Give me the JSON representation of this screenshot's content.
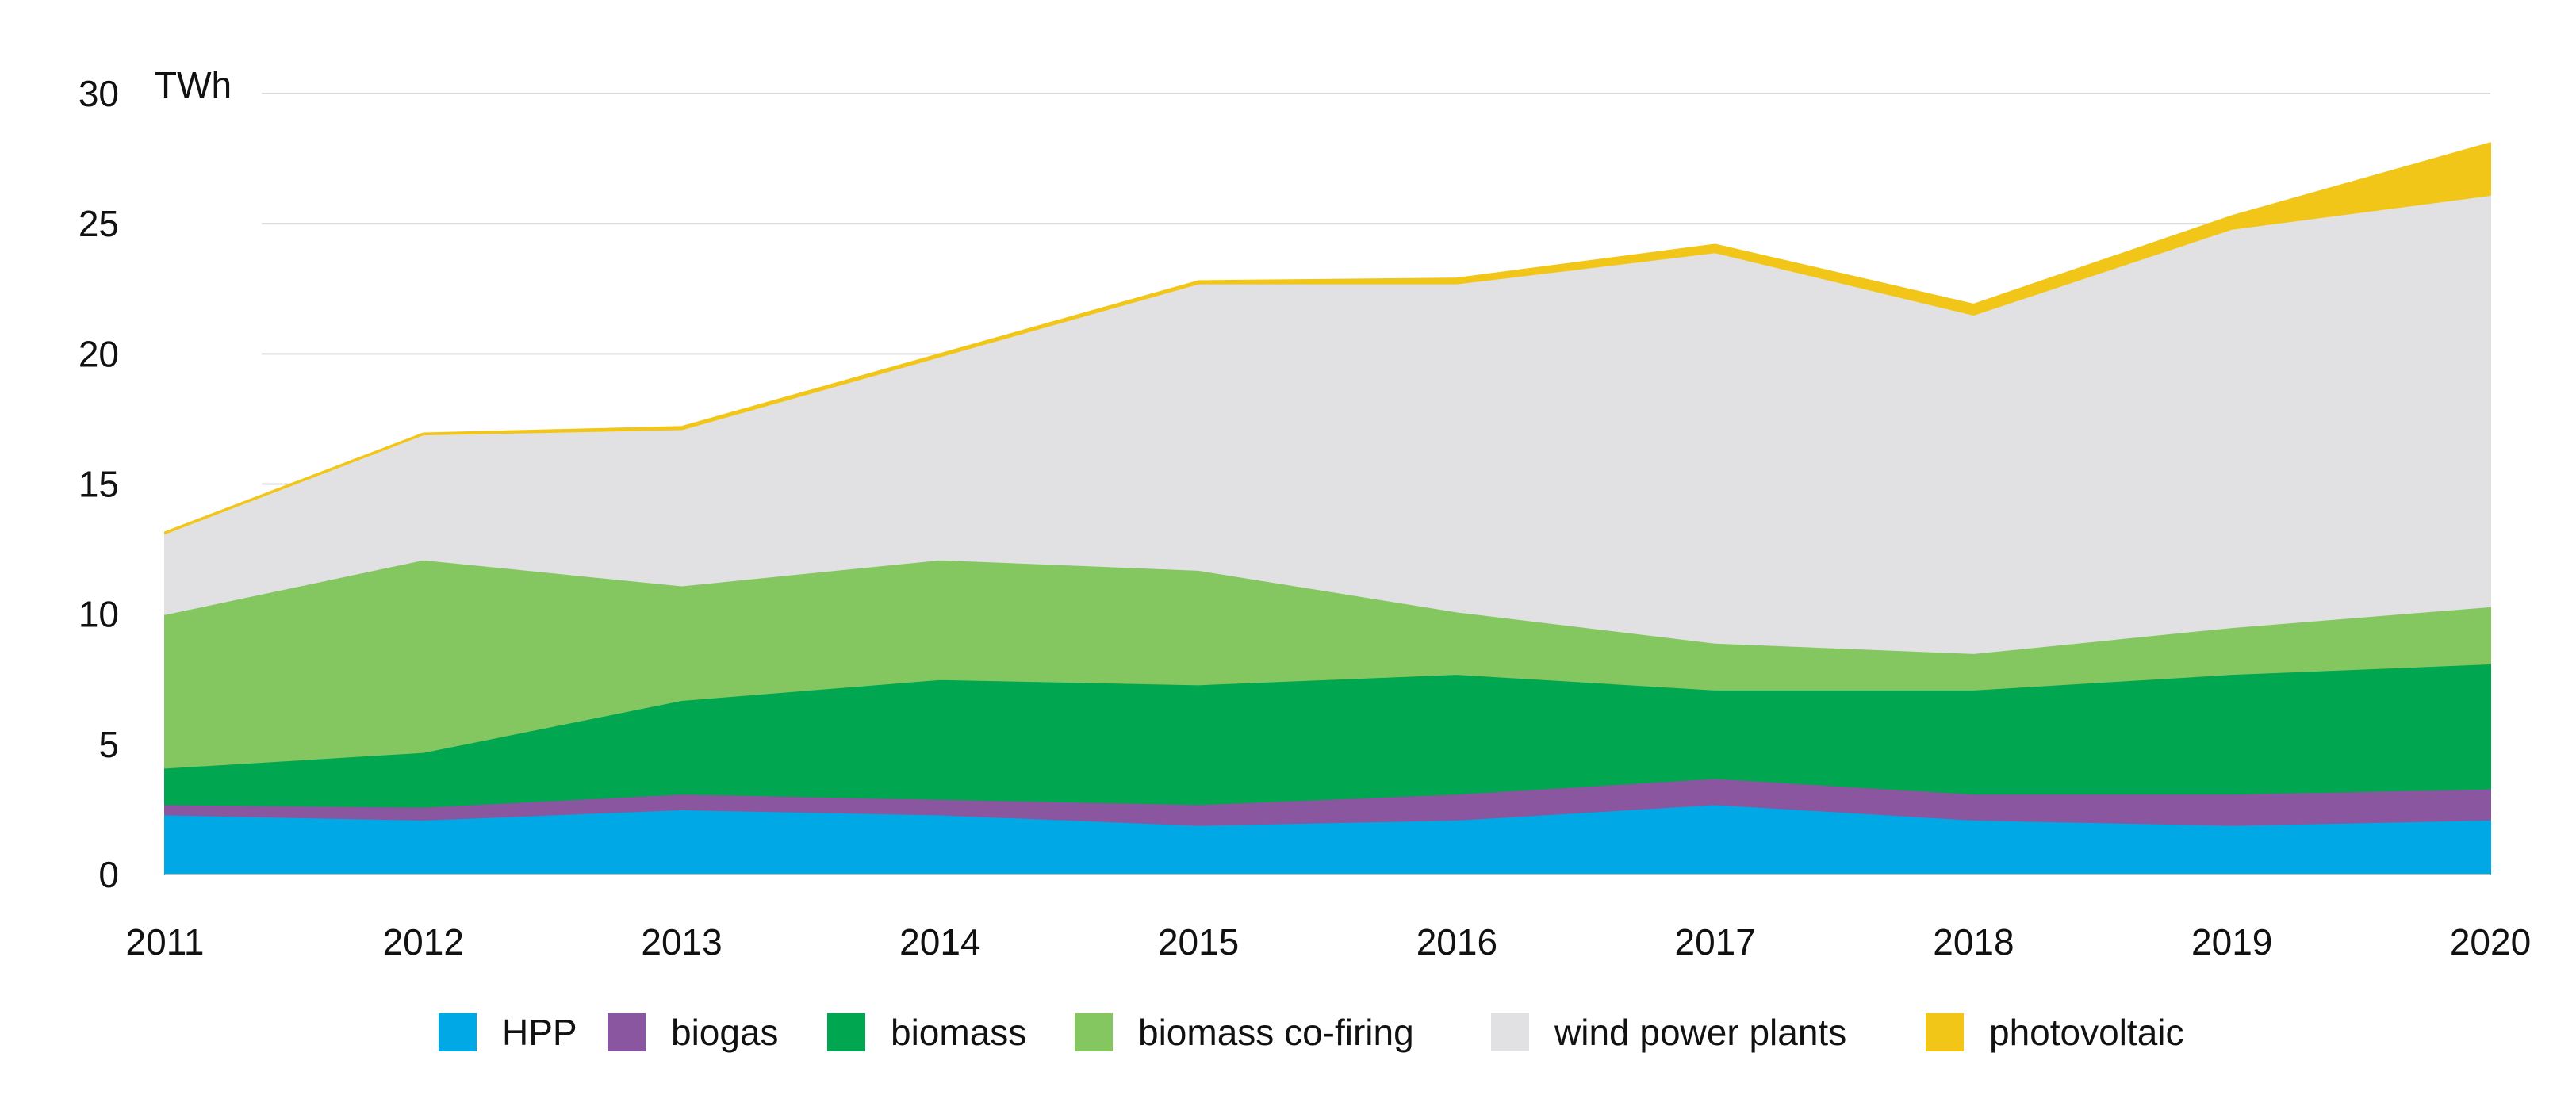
{
  "chart_data": {
    "type": "area",
    "stacked": true,
    "ylabel": "TWh",
    "ylim": [
      0,
      30
    ],
    "yticks": [
      "0",
      "5",
      "10",
      "15",
      "20",
      "25",
      "30"
    ],
    "x": [
      "2011",
      "2012",
      "2013",
      "2014",
      "2015",
      "2016",
      "2017",
      "2018",
      "2019",
      "2020"
    ],
    "grid": "horizontal",
    "legend": "bottom",
    "series": [
      {
        "name": "HPP",
        "color": "#00a8e6",
        "values": [
          2.3,
          2.1,
          2.5,
          2.3,
          1.9,
          2.1,
          2.7,
          2.1,
          1.9,
          2.1
        ]
      },
      {
        "name": "biogas",
        "color": "#8a56a0",
        "values": [
          0.4,
          0.5,
          0.6,
          0.6,
          0.8,
          1.0,
          1.0,
          1.0,
          1.2,
          1.2
        ]
      },
      {
        "name": "biomass",
        "color": "#00a650",
        "values": [
          1.4,
          2.1,
          3.6,
          4.6,
          4.6,
          4.6,
          3.4,
          4.0,
          4.6,
          4.8
        ]
      },
      {
        "name": "biomass co-firing",
        "color": "#84c761",
        "values": [
          5.9,
          7.4,
          4.4,
          4.6,
          4.4,
          2.4,
          1.8,
          1.4,
          1.8,
          2.2
        ]
      },
      {
        "name": "wind power plants",
        "color": "#e1e0e3",
        "values": [
          3.1,
          4.8,
          6.0,
          7.8,
          11.0,
          12.6,
          15.0,
          13.0,
          15.3,
          15.8
        ]
      },
      {
        "name": "photovoltaic",
        "color": "#f2c619",
        "values": [
          0.05,
          0.05,
          0.1,
          0.1,
          0.1,
          0.2,
          0.3,
          0.4,
          0.5,
          2.0
        ]
      }
    ]
  }
}
